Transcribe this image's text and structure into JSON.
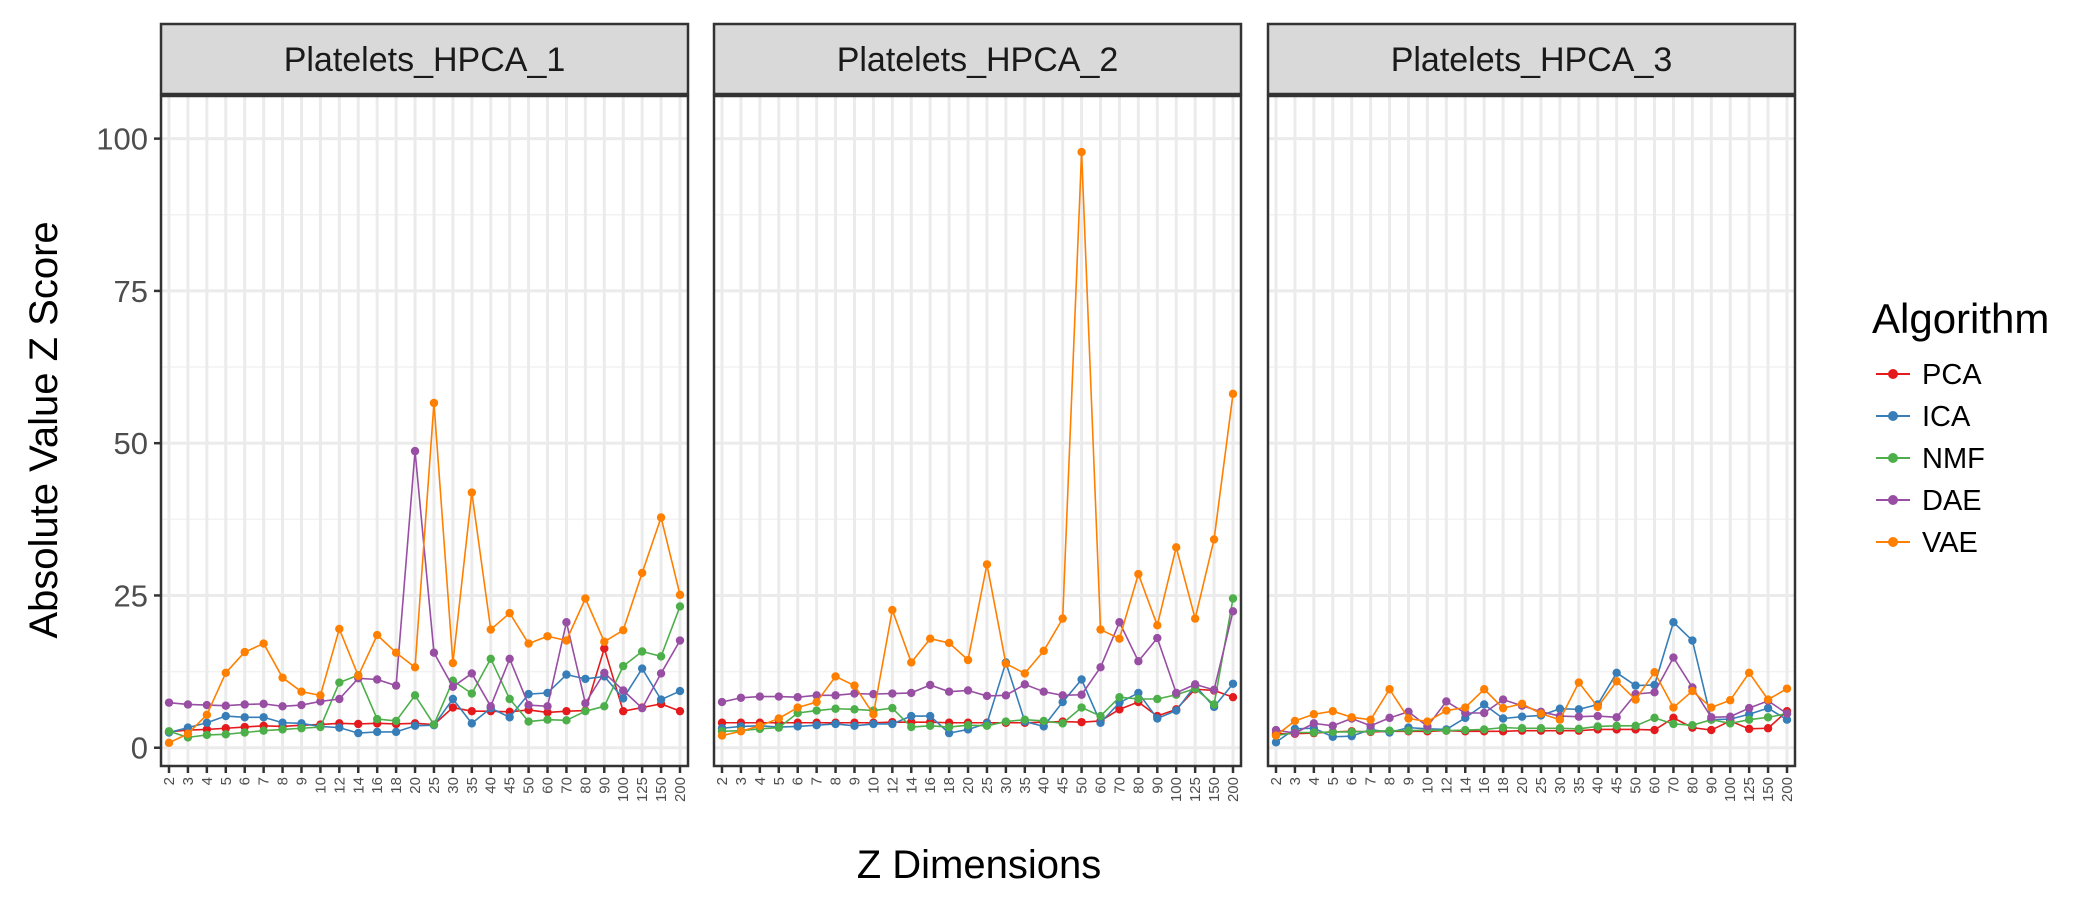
{
  "chart_data": {
    "type": "line",
    "ylabel": "Absolute Value Z Score",
    "xlabel": "Z Dimensions",
    "ylim": [
      -3,
      107
    ],
    "yticks": [
      0,
      25,
      50,
      75,
      100
    ],
    "grid": true,
    "legend": {
      "title": "Algorithm",
      "position": "right"
    },
    "categories": [
      "2",
      "3",
      "4",
      "5",
      "6",
      "7",
      "8",
      "9",
      "10",
      "12",
      "14",
      "16",
      "18",
      "20",
      "25",
      "30",
      "35",
      "40",
      "45",
      "50",
      "60",
      "70",
      "80",
      "90",
      "100",
      "125",
      "150",
      "200"
    ],
    "series_meta": [
      {
        "name": "PCA",
        "color": "#E41A1C"
      },
      {
        "name": "ICA",
        "color": "#377EB8"
      },
      {
        "name": "NMF",
        "color": "#4DAF4A"
      },
      {
        "name": "DAE",
        "color": "#984EA3"
      },
      {
        "name": "VAE",
        "color": "#FF7F00"
      }
    ],
    "panels": [
      {
        "title": "Platelets_HPCA_1",
        "series": [
          {
            "name": "PCA",
            "values": [
              2.6,
              2.9,
              3.0,
              3.2,
              3.4,
              3.6,
              3.5,
              3.7,
              3.8,
              4.0,
              3.9,
              4.0,
              3.9,
              4.0,
              3.8,
              6.6,
              6.0,
              6.0,
              5.9,
              6.2,
              5.8,
              6.0,
              6.1,
              16.3,
              6.0,
              6.6,
              7.2,
              6.0
            ]
          },
          {
            "name": "ICA",
            "values": [
              2.5,
              3.3,
              4.1,
              5.2,
              5.0,
              5.0,
              4.1,
              4.0,
              3.5,
              3.3,
              2.4,
              2.6,
              2.6,
              3.6,
              3.7,
              8.0,
              4.0,
              6.5,
              5.0,
              8.8,
              9.0,
              12.0,
              11.3,
              11.7,
              8.1,
              13.0,
              7.9,
              9.3
            ]
          },
          {
            "name": "NMF",
            "values": [
              2.7,
              1.7,
              2.1,
              2.2,
              2.5,
              2.8,
              3.0,
              3.2,
              3.4,
              10.7,
              11.9,
              4.7,
              4.4,
              8.6,
              3.8,
              11.0,
              8.9,
              14.6,
              8.0,
              4.3,
              4.6,
              4.5,
              6.0,
              6.8,
              13.4,
              15.8,
              15.0,
              23.2
            ]
          },
          {
            "name": "DAE",
            "values": [
              7.4,
              7.1,
              7.0,
              6.9,
              7.1,
              7.2,
              6.8,
              7.0,
              7.6,
              8.0,
              11.4,
              11.2,
              10.2,
              48.7,
              15.6,
              10.0,
              12.2,
              6.8,
              14.6,
              7.0,
              6.8,
              20.6,
              7.3,
              12.3,
              9.4,
              6.5,
              12.2,
              17.6
            ]
          },
          {
            "name": "VAE",
            "values": [
              0.8,
              2.3,
              5.4,
              12.3,
              15.7,
              17.1,
              11.5,
              9.2,
              8.6,
              19.5,
              11.8,
              18.5,
              15.6,
              13.2,
              56.6,
              13.9,
              41.9,
              19.4,
              22.1,
              17.1,
              18.3,
              17.6,
              24.5,
              17.4,
              19.3,
              28.7,
              37.8,
              25.1
            ]
          }
        ]
      },
      {
        "title": "Platelets_HPCA_2",
        "series": [
          {
            "name": "PCA",
            "values": [
              4.1,
              4.1,
              4.1,
              4.1,
              4.1,
              4.1,
              4.1,
              4.1,
              4.1,
              4.2,
              4.2,
              4.2,
              4.1,
              4.1,
              4.1,
              4.1,
              4.1,
              4.2,
              4.3,
              4.2,
              4.4,
              6.3,
              7.5,
              5.2,
              6.3,
              9.6,
              9.4,
              8.3
            ]
          },
          {
            "name": "ICA",
            "values": [
              3.2,
              3.5,
              3.6,
              3.4,
              3.5,
              3.7,
              3.9,
              3.6,
              3.9,
              3.9,
              5.2,
              5.2,
              2.4,
              3.0,
              4.0,
              14.0,
              4.3,
              3.5,
              7.5,
              11.2,
              4.1,
              7.4,
              9.0,
              4.8,
              6.1,
              10.2,
              6.7,
              10.5
            ]
          },
          {
            "name": "NMF",
            "values": [
              2.7,
              2.8,
              3.1,
              3.3,
              5.7,
              6.1,
              6.4,
              6.3,
              6.1,
              6.5,
              3.4,
              3.6,
              3.4,
              3.7,
              3.6,
              4.3,
              4.6,
              4.4,
              4.0,
              6.6,
              5.2,
              8.3,
              8.0,
              8.0,
              8.7,
              9.7,
              7.1,
              24.5
            ]
          },
          {
            "name": "DAE",
            "values": [
              7.5,
              8.2,
              8.4,
              8.4,
              8.3,
              8.6,
              8.6,
              8.9,
              8.8,
              8.9,
              9.0,
              10.3,
              9.2,
              9.4,
              8.5,
              8.6,
              10.4,
              9.2,
              8.6,
              8.7,
              13.2,
              20.6,
              14.2,
              18.0,
              9.0,
              10.4,
              9.5,
              22.4
            ]
          },
          {
            "name": "VAE",
            "values": [
              2.0,
              2.7,
              3.6,
              4.8,
              6.6,
              7.5,
              11.7,
              10.2,
              5.5,
              22.6,
              14.0,
              17.9,
              17.2,
              14.4,
              30.1,
              13.8,
              12.2,
              15.9,
              21.2,
              97.8,
              19.4,
              17.9,
              28.5,
              20.1,
              32.9,
              21.2,
              34.2,
              58.1
            ]
          }
        ]
      },
      {
        "title": "Platelets_HPCA_3",
        "series": [
          {
            "name": "PCA",
            "values": [
              2.3,
              2.3,
              2.4,
              2.6,
              2.7,
              2.6,
              2.7,
              2.7,
              2.7,
              2.8,
              2.7,
              2.7,
              2.7,
              2.8,
              2.8,
              2.8,
              2.8,
              3.0,
              3.0,
              3.0,
              2.9,
              4.9,
              3.3,
              2.9,
              4.4,
              3.1,
              3.2,
              6.0
            ]
          },
          {
            "name": "ICA",
            "values": [
              0.9,
              3.1,
              3.2,
              1.8,
              1.9,
              3.0,
              2.5,
              3.3,
              3.1,
              3.0,
              4.9,
              7.1,
              4.8,
              5.1,
              5.3,
              6.4,
              6.3,
              7.1,
              12.3,
              10.2,
              10.3,
              20.6,
              17.6,
              4.6,
              4.7,
              5.5,
              6.5,
              4.6
            ]
          },
          {
            "name": "NMF",
            "values": [
              2.0,
              2.5,
              2.5,
              2.6,
              2.6,
              2.7,
              2.8,
              2.8,
              2.9,
              2.8,
              2.9,
              3.0,
              3.3,
              3.2,
              3.2,
              3.2,
              3.1,
              3.5,
              3.6,
              3.6,
              4.9,
              3.9,
              3.7,
              4.6,
              4.0,
              4.6,
              5.0,
              5.6
            ]
          },
          {
            "name": "DAE",
            "values": [
              2.9,
              2.4,
              4.0,
              3.6,
              4.8,
              3.6,
              4.9,
              5.9,
              3.5,
              7.6,
              5.7,
              5.7,
              7.9,
              6.9,
              5.9,
              5.2,
              5.1,
              5.2,
              5.0,
              8.8,
              9.1,
              14.8,
              9.9,
              5.0,
              5.1,
              6.5,
              7.7,
              5.6
            ]
          },
          {
            "name": "VAE",
            "values": [
              2.0,
              4.4,
              5.5,
              6.0,
              5.0,
              4.6,
              9.6,
              4.8,
              4.3,
              6.1,
              6.6,
              9.6,
              6.5,
              7.2,
              5.6,
              4.6,
              10.7,
              6.7,
              10.9,
              7.9,
              12.4,
              6.6,
              9.3,
              6.6,
              7.8,
              12.3,
              7.9,
              9.7
            ]
          }
        ]
      }
    ]
  }
}
